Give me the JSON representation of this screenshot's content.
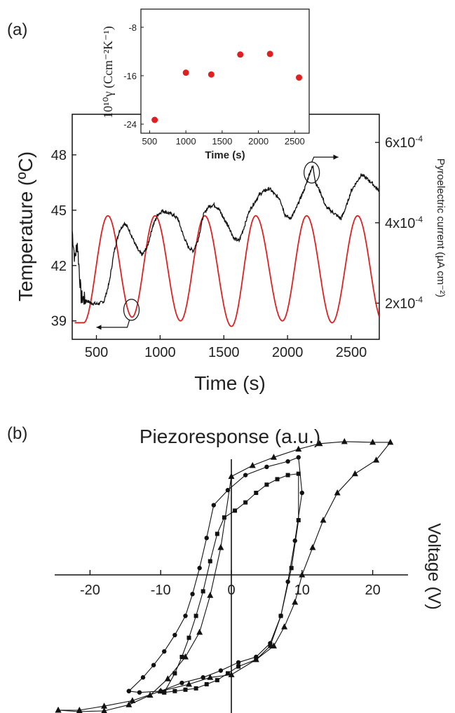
{
  "chart_data": [
    {
      "panel": "(a)",
      "type": "line",
      "xlabel": "Time (s)",
      "ylabel": "Temperature (ºC)",
      "ylabel_right": "Pyroelectric current (µA cm⁻²)",
      "xlim": [
        310,
        2720
      ],
      "ylim": [
        38,
        50.2
      ],
      "ylim_right": [
        0.00011,
        0.00067
      ],
      "xticks": [
        500,
        1000,
        1500,
        2000,
        2500
      ],
      "yticks": [
        39,
        42,
        45,
        48
      ],
      "yticks_right": [
        0.0002,
        0.0004,
        0.0006
      ],
      "yticks_right_labels": [
        "2x10",
        "4x10",
        "6x10"
      ],
      "yticks_right_exp": "-4",
      "series": [
        {
          "axis": "left",
          "color": "#e02020",
          "model": "sine",
          "x_start": 330,
          "x_end": 2720,
          "peaks": [
            [
              590,
              44.7
            ],
            [
              960,
              44.7
            ],
            [
              1350,
              44.7
            ],
            [
              1750,
              44.7
            ],
            [
              2150,
              44.7
            ],
            [
              2550,
              44.7
            ]
          ],
          "troughs": [
            [
              780,
              39.2
            ],
            [
              1160,
              39.0
            ],
            [
              1560,
              38.7
            ],
            [
              1960,
              39.0
            ],
            [
              2350,
              38.9
            ]
          ]
        },
        {
          "axis": "right",
          "color": "#111111",
          "model": "noisy",
          "x": [
            310,
            330,
            350,
            380,
            400,
            430,
            460,
            500,
            530,
            560,
            600,
            640,
            680,
            720,
            760,
            800,
            830,
            860,
            900,
            940,
            980,
            1020,
            1060,
            1100,
            1140,
            1180,
            1220,
            1260,
            1300,
            1340,
            1380,
            1420,
            1460,
            1500,
            1540,
            1580,
            1620,
            1660,
            1700,
            1740,
            1780,
            1820,
            1860,
            1900,
            1940,
            1980,
            2020,
            2060,
            2100,
            2140,
            2180,
            2200,
            2220,
            2260,
            2300,
            2340,
            2380,
            2420,
            2460,
            2500,
            2540,
            2580,
            2620,
            2660,
            2700,
            2720
          ],
          "values": [
            0.00038,
            0.00031,
            0.00035,
            0.000215,
            0.00021,
            0.000205,
            0.0002,
            0.000198,
            0.0002,
            0.000205,
            0.00025,
            0.00033,
            0.00038,
            0.0004,
            0.00038,
            0.00035,
            0.00033,
            0.00032,
            0.00034,
            0.00039,
            0.00042,
            0.00043,
            0.000425,
            0.00042,
            0.00041,
            0.00037,
            0.00034,
            0.00033,
            0.00036,
            0.00042,
            0.00044,
            0.000445,
            0.000435,
            0.00041,
            0.00039,
            0.00036,
            0.000355,
            0.00039,
            0.00043,
            0.00045,
            0.00047,
            0.00048,
            0.000485,
            0.00047,
            0.00046,
            0.00042,
            0.00041,
            0.00043,
            0.00046,
            0.00049,
            0.00053,
            0.00054,
            0.0005,
            0.000475,
            0.00044,
            0.00043,
            0.00042,
            0.00041,
            0.00044,
            0.00048,
            0.0005,
            0.00052,
            0.00051,
            0.0005,
            0.000485,
            0.00048
          ]
        }
      ],
      "annotations": [
        {
          "type": "ellipse",
          "x": 775,
          "y": 39.6,
          "axis": "left",
          "arrow": "left"
        },
        {
          "type": "ellipse",
          "x": 2190,
          "y": 0.000525,
          "axis": "right",
          "arrow": "right"
        }
      ]
    },
    {
      "panel": "(a) inset",
      "type": "scatter",
      "xlabel": "Time (s)",
      "ylabel": "10¹⁰γ (Ccm⁻²K⁻¹)",
      "xlim": [
        380,
        2700
      ],
      "ylim": [
        -25.5,
        -5
      ],
      "xticks": [
        500,
        1000,
        1500,
        2000,
        2500
      ],
      "yticks": [
        -24,
        -16,
        -8
      ],
      "series": [
        {
          "color": "#e02020",
          "x": [
            570,
            1000,
            1350,
            1750,
            2160,
            2560
          ],
          "values": [
            -23.3,
            -15.5,
            -15.8,
            -12.5,
            -12.4,
            -16.3
          ]
        }
      ]
    },
    {
      "panel": "(b)",
      "type": "line",
      "xlabel": "Piezoresponse (a.u.)",
      "ylabel": "Voltage (V)",
      "xlim": [
        -25,
        25
      ],
      "ylim": [
        -1,
        1
      ],
      "xticks": [
        -20,
        -10,
        0,
        10,
        20
      ],
      "series": [
        {
          "marker": "triangle",
          "x": [
            -24.5,
            -21.5,
            -18,
            -14.5,
            -11.5,
            -9,
            -6.5,
            -4.5,
            -3,
            -1.5,
            0,
            3,
            6,
            9.5,
            12.5,
            16,
            20,
            22.5,
            20.5,
            17.5,
            15,
            13,
            11.5,
            10,
            9,
            7.5,
            6,
            3.5,
            0,
            -3,
            -6,
            -10,
            -14,
            -18,
            -21.5,
            -24.5
          ],
          "values": [
            -0.99,
            -1.0,
            -0.995,
            -0.95,
            -0.88,
            -0.76,
            -0.6,
            -0.42,
            -0.15,
            0.2,
            0.72,
            0.8,
            0.86,
            0.92,
            0.96,
            0.975,
            0.97,
            0.97,
            0.84,
            0.74,
            0.6,
            0.4,
            0.2,
            0.0,
            -0.2,
            -0.38,
            -0.52,
            -0.62,
            -0.73,
            -0.75,
            -0.8,
            -0.85,
            -0.92,
            -0.96,
            -0.99,
            -0.99
          ]
        },
        {
          "marker": "circle",
          "x": [
            -14.5,
            -12.5,
            -11,
            -9.5,
            -8,
            -6.5,
            -5.5,
            -4.5,
            -3.5,
            -2.5,
            -0.5,
            2,
            5,
            8,
            9.5,
            10,
            9,
            8,
            7,
            5.5,
            3.5,
            1,
            -1.5,
            -4,
            -7,
            -10,
            -13,
            -14.5
          ],
          "values": [
            -0.85,
            -0.75,
            -0.66,
            -0.56,
            -0.44,
            -0.3,
            -0.14,
            0.05,
            0.27,
            0.51,
            0.62,
            0.73,
            0.79,
            0.83,
            0.86,
            0.6,
            0.25,
            -0.05,
            -0.3,
            -0.5,
            -0.6,
            -0.64,
            -0.7,
            -0.75,
            -0.79,
            -0.85,
            -0.86,
            -0.85
          ]
        },
        {
          "marker": "square",
          "x": [
            -9.5,
            -8,
            -7,
            -6,
            -5,
            -4,
            -3,
            -2,
            -1,
            0.5,
            2,
            3.5,
            5,
            6.5,
            8,
            9.5,
            9.5,
            8.5,
            7,
            5.5,
            3.5,
            1,
            -0.5,
            -2,
            -3.5,
            -5,
            -6.5,
            -8,
            -9.5
          ],
          "values": [
            -0.86,
            -0.72,
            -0.6,
            -0.46,
            -0.3,
            -0.12,
            0.1,
            0.3,
            0.42,
            0.47,
            0.53,
            0.6,
            0.66,
            0.7,
            0.73,
            0.74,
            0.4,
            0.05,
            -0.3,
            -0.52,
            -0.62,
            -0.67,
            -0.72,
            -0.77,
            -0.8,
            -0.83,
            -0.84,
            -0.85,
            -0.86
          ]
        }
      ]
    }
  ]
}
